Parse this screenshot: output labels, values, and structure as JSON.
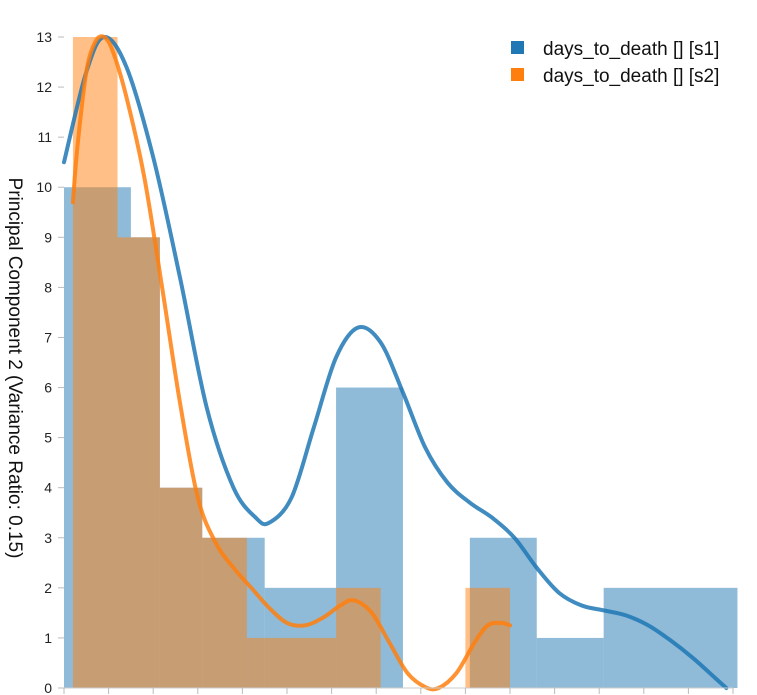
{
  "chart_data": {
    "type": "bar",
    "subtype": "histogram-with-density",
    "ylabel": "Principal Component 2 (Variance Ratio: 0.15)",
    "xlabel": "",
    "ylim": [
      0,
      13
    ],
    "y_ticks": [
      "0",
      "1",
      "2",
      "3",
      "4",
      "5",
      "6",
      "7",
      "8",
      "9",
      "10",
      "11",
      "12",
      "13"
    ],
    "grid": false,
    "legend_position": "top-right",
    "series": [
      {
        "name": "days_to_death [] [s1]",
        "color": "#1f77b4",
        "bins": [
          {
            "x0": 0.0,
            "x1": 1.5,
            "count": 10
          },
          {
            "x0": 1.5,
            "x1": 2.15,
            "count": 9
          },
          {
            "x0": 2.15,
            "x1": 3.1,
            "count": 4
          },
          {
            "x0": 3.1,
            "x1": 4.5,
            "count": 3
          },
          {
            "x0": 4.5,
            "x1": 6.1,
            "count": 2
          },
          {
            "x0": 6.1,
            "x1": 7.6,
            "count": 6
          },
          {
            "x0": 7.6,
            "x1": 9.1,
            "count": 0
          },
          {
            "x0": 9.1,
            "x1": 10.6,
            "count": 3
          },
          {
            "x0": 10.6,
            "x1": 12.1,
            "count": 1
          },
          {
            "x0": 12.1,
            "x1": 15.1,
            "count": 2
          }
        ],
        "density_curve": [
          [
            0.0,
            10.5
          ],
          [
            0.5,
            12.3
          ],
          [
            0.9,
            13.0
          ],
          [
            1.4,
            12.4
          ],
          [
            2.0,
            10.6
          ],
          [
            2.6,
            8.2
          ],
          [
            3.2,
            5.6
          ],
          [
            3.8,
            4.0
          ],
          [
            4.3,
            3.4
          ],
          [
            4.6,
            3.3
          ],
          [
            5.1,
            3.8
          ],
          [
            5.6,
            5.2
          ],
          [
            6.1,
            6.6
          ],
          [
            6.6,
            7.2
          ],
          [
            7.1,
            6.9
          ],
          [
            7.6,
            5.9
          ],
          [
            8.1,
            4.8
          ],
          [
            8.6,
            4.1
          ],
          [
            9.1,
            3.7
          ],
          [
            9.6,
            3.4
          ],
          [
            10.1,
            3.0
          ],
          [
            10.6,
            2.4
          ],
          [
            11.1,
            1.9
          ],
          [
            11.6,
            1.65
          ],
          [
            12.1,
            1.55
          ],
          [
            12.6,
            1.45
          ],
          [
            13.1,
            1.25
          ],
          [
            13.6,
            0.95
          ],
          [
            14.1,
            0.6
          ],
          [
            14.6,
            0.2
          ],
          [
            14.85,
            0.0
          ]
        ]
      },
      {
        "name": "days_to_death [] [s2]",
        "color": "#ff7f0e",
        "bins": [
          {
            "x0": 0.2,
            "x1": 1.2,
            "count": 13
          },
          {
            "x0": 1.2,
            "x1": 2.15,
            "count": 9
          },
          {
            "x0": 2.15,
            "x1": 3.1,
            "count": 4
          },
          {
            "x0": 3.1,
            "x1": 4.1,
            "count": 3
          },
          {
            "x0": 4.1,
            "x1": 6.1,
            "count": 1
          },
          {
            "x0": 6.1,
            "x1": 7.1,
            "count": 2
          },
          {
            "x0": 7.1,
            "x1": 9.0,
            "count": 0
          },
          {
            "x0": 9.0,
            "x1": 10.0,
            "count": 2
          }
        ],
        "density_curve": [
          [
            0.2,
            9.7
          ],
          [
            0.3,
            10.8
          ],
          [
            0.5,
            12.3
          ],
          [
            0.7,
            12.9
          ],
          [
            0.9,
            13.0
          ],
          [
            1.1,
            12.7
          ],
          [
            1.4,
            11.8
          ],
          [
            1.8,
            10.2
          ],
          [
            2.2,
            8.0
          ],
          [
            2.6,
            5.7
          ],
          [
            3.0,
            3.8
          ],
          [
            3.4,
            2.9
          ],
          [
            3.8,
            2.4
          ],
          [
            4.2,
            2.0
          ],
          [
            4.6,
            1.6
          ],
          [
            5.0,
            1.3
          ],
          [
            5.4,
            1.25
          ],
          [
            5.8,
            1.4
          ],
          [
            6.2,
            1.65
          ],
          [
            6.5,
            1.75
          ],
          [
            6.9,
            1.5
          ],
          [
            7.3,
            0.9
          ],
          [
            7.7,
            0.3
          ],
          [
            8.1,
            0.02
          ],
          [
            8.4,
            0.0
          ],
          [
            8.8,
            0.3
          ],
          [
            9.2,
            0.9
          ],
          [
            9.5,
            1.25
          ],
          [
            9.8,
            1.3
          ],
          [
            10.0,
            1.25
          ]
        ]
      }
    ]
  }
}
